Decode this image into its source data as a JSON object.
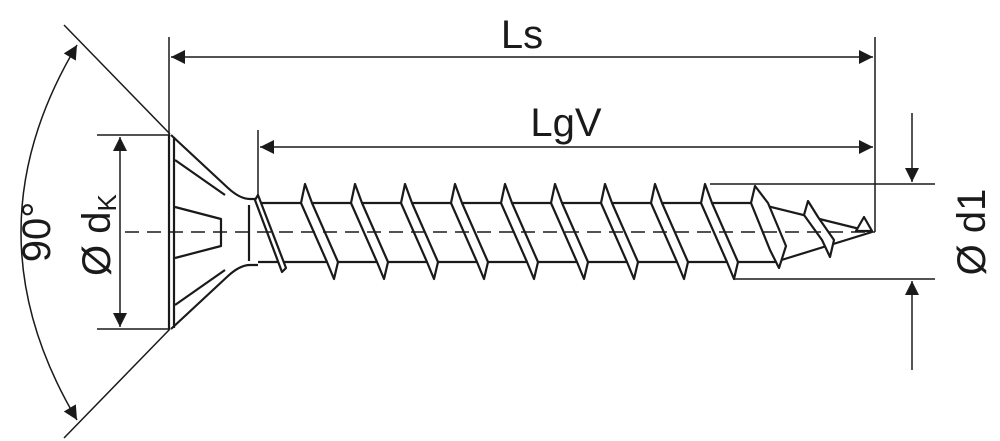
{
  "labels": {
    "ls": "Ls",
    "lgv": "LgV",
    "angle": "90°",
    "head_diameter": "Ø d",
    "head_diameter_sub": "K",
    "thread_diameter": "Ø d1"
  },
  "colors": {
    "line": "#1a1a1a",
    "background": "#ffffff"
  }
}
